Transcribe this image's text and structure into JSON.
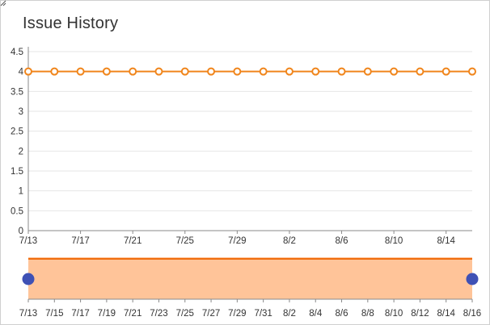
{
  "title": "Issue History",
  "colors": {
    "line": "#f0851b",
    "marker_fill": "#ffffff",
    "navigator_fill": "#ffc499",
    "navigator_line": "#f06e0f",
    "handle": "#3f51b5",
    "grid": "#e6e6e6",
    "axis": "#8a8a8a"
  },
  "chart_data": {
    "type": "line",
    "title": "Issue History",
    "xlabel": "",
    "ylabel": "",
    "ylim": [
      0,
      4.5
    ],
    "y_ticks": [
      "0",
      "0.5",
      "1",
      "1.5",
      "2",
      "2.5",
      "3",
      "3.5",
      "4",
      "4.5"
    ],
    "x_tick_labels": [
      "7/13",
      "7/17",
      "7/21",
      "7/25",
      "7/29",
      "8/2",
      "8/6",
      "8/10",
      "8/14"
    ],
    "grid": true,
    "legend": "none",
    "series": [
      {
        "x": [
          "7/13",
          "7/15",
          "7/17",
          "7/19",
          "7/21",
          "7/23",
          "7/25",
          "7/27",
          "7/29",
          "7/31",
          "8/2",
          "8/4",
          "8/6",
          "8/8",
          "8/10",
          "8/12",
          "8/14",
          "8/16"
        ],
        "values": [
          4,
          4,
          4,
          4,
          4,
          4,
          4,
          4,
          4,
          4,
          4,
          4,
          4,
          4,
          4,
          4,
          4,
          4
        ]
      }
    ],
    "navigator": {
      "x_tick_labels": [
        "7/13",
        "7/15",
        "7/17",
        "7/19",
        "7/21",
        "7/23",
        "7/25",
        "7/27",
        "7/29",
        "7/31",
        "8/2",
        "8/4",
        "8/6",
        "8/8",
        "8/10",
        "8/12",
        "8/14",
        "8/16"
      ],
      "range": [
        "7/13",
        "8/16"
      ]
    }
  }
}
